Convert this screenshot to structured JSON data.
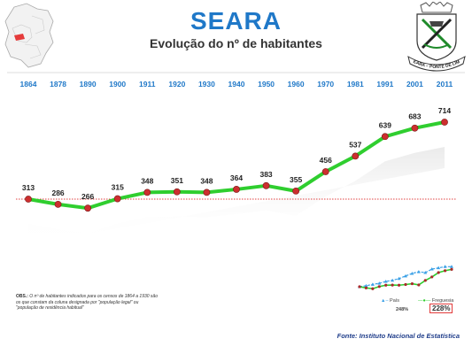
{
  "header": {
    "title": "SEARA",
    "subtitle": "Evolução do nº de habitantes"
  },
  "crest": {
    "motto": "SEARA – PONTE DE LIMA"
  },
  "chart_data": [
    {
      "type": "line",
      "categories": [
        "1864",
        "1878",
        "1890",
        "1900",
        "1911",
        "1920",
        "1930",
        "1940",
        "1950",
        "1960",
        "1970",
        "1981",
        "1991",
        "2001",
        "2011"
      ],
      "values": [
        313,
        286,
        266,
        315,
        348,
        351,
        348,
        364,
        383,
        355,
        456,
        537,
        639,
        683,
        714
      ],
      "reference_line": 313,
      "ylim": [
        0,
        760
      ],
      "colors": {
        "line": "#2fce2f",
        "point": "#cc2f2f",
        "category": "#1f78c8",
        "reference": "#e04040"
      }
    },
    {
      "type": "line",
      "categories": [
        "1864",
        "1878",
        "1890",
        "1900",
        "1911",
        "1920",
        "1930",
        "1940",
        "1950",
        "1960",
        "1970",
        "1981",
        "1991",
        "2001",
        "2011"
      ],
      "series": [
        {
          "name": "País",
          "values": [
            100,
            107,
            117,
            125,
            139,
            147,
            160,
            179,
            198,
            210,
            204,
            230,
            239,
            248,
            248
          ]
        },
        {
          "name": "Freguesia",
          "values": [
            100,
            91,
            85,
            101,
            111,
            112,
            111,
            116,
            122,
            113,
            146,
            172,
            204,
            218,
            228
          ]
        }
      ],
      "labels": {
        "pais_pct": "248%",
        "freg_pct": "228%"
      },
      "colors": {
        "pais": "#3aa0e6",
        "freg": "#2fce2f",
        "freg_point": "#aa2a2a"
      }
    }
  ],
  "note": {
    "label": "OBS.:",
    "text": "O nº de habitantes indicados para os censos de 1864 a 1930 são os que constam da coluna designada por \"população legal\" ou \"população de residência habitual\""
  },
  "source": "Fonte: Instituto Nacional de Estatística"
}
